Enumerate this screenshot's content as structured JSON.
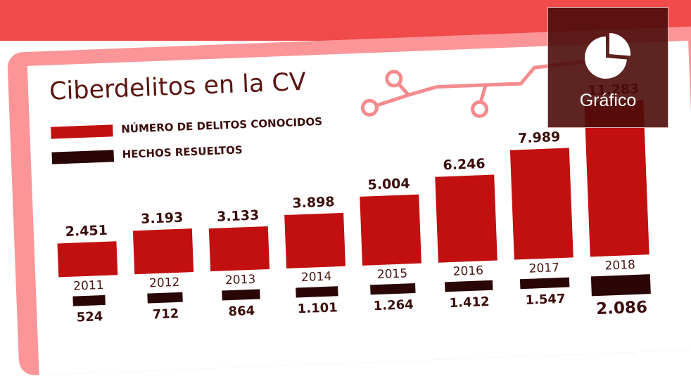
{
  "chart_data": {
    "type": "bar",
    "title": "Ciberdelitos en la CV",
    "categories": [
      "2011",
      "2012",
      "2013",
      "2014",
      "2015",
      "2016",
      "2017",
      "2018"
    ],
    "series": [
      {
        "name": "NÚMERO DE DELITOS CONOCIDOS",
        "values": [
          2451,
          3193,
          3133,
          3898,
          5004,
          6246,
          7989,
          11283
        ],
        "value_labels": [
          "2.451",
          "3.193",
          "3.133",
          "3.898",
          "5.004",
          "6.246",
          "7.989",
          "11.283"
        ]
      },
      {
        "name": "HECHOS RESUELTOS",
        "values": [
          524,
          712,
          864,
          1101,
          1264,
          1412,
          1547,
          2086
        ],
        "value_labels": [
          "524",
          "712",
          "864",
          "1.101",
          "1.264",
          "1.412",
          "1.547",
          "2.086"
        ]
      }
    ],
    "ylim": [
      0,
      11283
    ],
    "grid": false,
    "legend": "top-left"
  },
  "colors": {
    "top_bar": "#f04a4a",
    "frame": "#fb9597",
    "series_1": "#c21010",
    "series_2": "#2a0606",
    "circuit": "#f48b8e",
    "badge": "#4b0c0a"
  },
  "badge": {
    "icon": "pie-chart-icon",
    "label": "Gráfico"
  }
}
